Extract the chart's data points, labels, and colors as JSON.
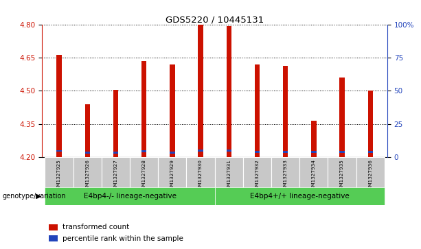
{
  "title": "GDS5220 / 10445131",
  "samples": [
    "GSM1327925",
    "GSM1327926",
    "GSM1327927",
    "GSM1327928",
    "GSM1327929",
    "GSM1327930",
    "GSM1327931",
    "GSM1327932",
    "GSM1327933",
    "GSM1327934",
    "GSM1327935",
    "GSM1327936"
  ],
  "red_values": [
    4.665,
    4.44,
    4.505,
    4.635,
    4.62,
    4.8,
    4.795,
    4.62,
    4.615,
    4.365,
    4.56,
    4.5
  ],
  "blue_values": [
    4.227,
    4.22,
    4.22,
    4.225,
    4.22,
    4.228,
    4.228,
    4.222,
    4.222,
    4.222,
    4.222,
    4.222
  ],
  "ymin": 4.2,
  "ymax": 4.8,
  "yticks_left": [
    4.2,
    4.35,
    4.5,
    4.65,
    4.8
  ],
  "yticks_right": [
    0,
    25,
    50,
    75,
    100
  ],
  "bar_color": "#cc1100",
  "blue_color": "#2244bb",
  "group1_label": "E4bp4-/- lineage-negative",
  "group2_label": "E4bp4+/+ lineage-negative",
  "group_color": "#55cc55",
  "group1_samples": 6,
  "group2_samples": 6,
  "genotype_label": "genotype/variation",
  "legend_red": "transformed count",
  "legend_blue": "percentile rank within the sample"
}
